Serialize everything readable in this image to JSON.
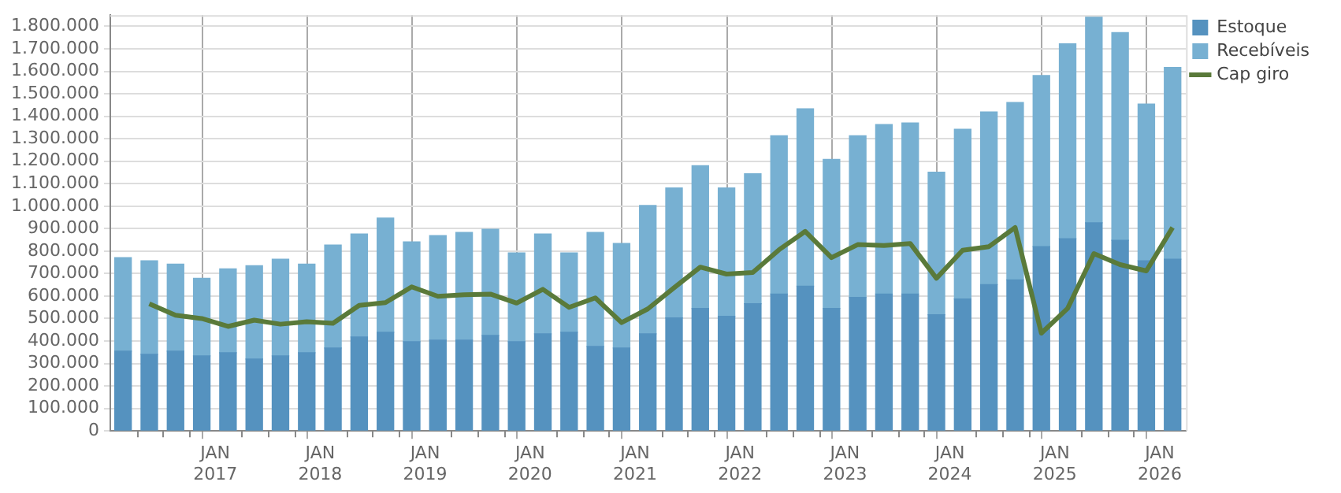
{
  "chart_data": {
    "type": "bar",
    "stacked": true,
    "legend": "top right",
    "grid": true,
    "marker": "none",
    "line_style": "solid",
    "x": [
      "2016-02-15",
      "2016-05-15",
      "2016-08-15",
      "2016-11-15",
      "2017-02-15",
      "2017-05-15",
      "2017-08-15",
      "2017-11-15",
      "2018-02-15",
      "2018-05-15",
      "2018-08-15",
      "2018-11-15",
      "2019-02-15",
      "2019-05-15",
      "2019-08-15",
      "2019-11-15",
      "2020-02-15",
      "2020-05-15",
      "2020-08-15",
      "2020-11-15",
      "2021-02-15",
      "2021-05-15",
      "2021-08-15",
      "2021-11-15",
      "2022-02-15",
      "2022-05-15",
      "2022-08-15",
      "2022-11-15",
      "2023-02-15",
      "2023-05-15",
      "2023-08-15",
      "2023-11-15",
      "2024-02-15",
      "2024-05-15",
      "2024-08-15",
      "2024-11-15",
      "2025-02-15",
      "2025-05-15",
      "2025-08-15",
      "2025-11-15",
      "2026-02-15"
    ],
    "xlim": [
      "2016-01-01",
      "2026-04-01"
    ],
    "xticks": [
      {
        "value": "2016-04-01",
        "label": null
      },
      {
        "value": "2016-07-01",
        "label": null
      },
      {
        "value": "2016-10-01",
        "label": null
      },
      {
        "value": "2017-01-01",
        "label": "JAN 2017"
      },
      {
        "value": "2017-04-01",
        "label": null
      },
      {
        "value": "2017-07-01",
        "label": null
      },
      {
        "value": "2017-10-01",
        "label": null
      },
      {
        "value": "2018-01-01",
        "label": "JAN 2018"
      },
      {
        "value": "2018-04-01",
        "label": null
      },
      {
        "value": "2018-07-01",
        "label": null
      },
      {
        "value": "2018-10-01",
        "label": null
      },
      {
        "value": "2019-01-01",
        "label": "JAN 2019"
      },
      {
        "value": "2019-04-01",
        "label": null
      },
      {
        "value": "2019-07-01",
        "label": null
      },
      {
        "value": "2019-10-01",
        "label": null
      },
      {
        "value": "2020-01-01",
        "label": "JAN 2020"
      },
      {
        "value": "2020-04-01",
        "label": null
      },
      {
        "value": "2020-07-01",
        "label": null
      },
      {
        "value": "2020-10-01",
        "label": null
      },
      {
        "value": "2021-01-01",
        "label": "JAN 2021"
      },
      {
        "value": "2021-04-01",
        "label": null
      },
      {
        "value": "2021-07-01",
        "label": null
      },
      {
        "value": "2021-10-01",
        "label": null
      },
      {
        "value": "2022-01-01",
        "label": "JAN 2022"
      },
      {
        "value": "2022-04-01",
        "label": null
      },
      {
        "value": "2022-07-01",
        "label": null
      },
      {
        "value": "2022-10-01",
        "label": null
      },
      {
        "value": "2023-01-01",
        "label": "JAN 2023"
      },
      {
        "value": "2023-04-01",
        "label": null
      },
      {
        "value": "2023-07-01",
        "label": null
      },
      {
        "value": "2023-10-01",
        "label": null
      },
      {
        "value": "2024-01-01",
        "label": "JAN 2024"
      },
      {
        "value": "2024-04-01",
        "label": null
      },
      {
        "value": "2024-07-01",
        "label": null
      },
      {
        "value": "2024-10-01",
        "label": null
      },
      {
        "value": "2025-01-01",
        "label": "JAN 2025"
      },
      {
        "value": "2025-04-01",
        "label": null
      },
      {
        "value": "2025-07-01",
        "label": null
      },
      {
        "value": "2025-10-01",
        "label": null
      },
      {
        "value": "2026-01-01",
        "label": "JAN 2026"
      }
    ],
    "ylim": [
      0,
      1850000
    ],
    "yticks": [
      0,
      {
        "value": 100000,
        "label": "100.000"
      },
      {
        "value": 200000,
        "label": "200.000"
      },
      {
        "value": 300000,
        "label": "300.000"
      },
      {
        "value": 400000,
        "label": "400.000"
      },
      {
        "value": 500000,
        "label": "500.000"
      },
      {
        "value": 600000,
        "label": "600.000"
      },
      {
        "value": 700000,
        "label": "700.000"
      },
      {
        "value": 800000,
        "label": "800.000"
      },
      {
        "value": 900000,
        "label": "900.000"
      },
      {
        "value": 1000000,
        "label": "1.000.000"
      },
      {
        "value": 1100000,
        "label": "1.100.000"
      },
      {
        "value": 1200000,
        "label": "1.200.000"
      },
      {
        "value": 1300000,
        "label": "1.300.000"
      },
      {
        "value": 1400000,
        "label": "1.400.000"
      },
      {
        "value": 1500000,
        "label": "1.500.000"
      },
      {
        "value": 1600000,
        "label": "1.600.000"
      },
      {
        "value": 1700000,
        "label": "1.700.000"
      },
      {
        "value": 1800000,
        "label": "1.800.000"
      }
    ],
    "series": [
      {
        "name": "Estoque",
        "color": "#5592bf",
        "values": [
          355000,
          341000,
          355000,
          334000,
          348000,
          320000,
          334000,
          348000,
          369000,
          418000,
          439000,
          397000,
          404000,
          404000,
          425000,
          397000,
          432000,
          439000,
          376000,
          369000,
          432000,
          503000,
          545000,
          510000,
          566000,
          609000,
          644000,
          545000,
          594000,
          609000,
          609000,
          517000,
          587000,
          651000,
          672000,
          820000,
          855000,
          926000,
          848000,
          757000,
          764000
        ]
      },
      {
        "name": "Recebíveis",
        "color": "#77b0d2",
        "values": [
          416000,
          416000,
          387000,
          345000,
          373000,
          415000,
          430000,
          394000,
          458000,
          458000,
          508000,
          444000,
          465000,
          479000,
          472000,
          395000,
          444000,
          353000,
          507000,
          465000,
          571000,
          578000,
          635000,
          571000,
          578000,
          704000,
          789000,
          663000,
          719000,
          754000,
          761000,
          634000,
          755000,
          768000,
          789000,
          761000,
          867000,
          916000,
          924000,
          697000,
          853000
        ]
      },
      {
        "name": "Cap giro",
        "type": "line",
        "color": "#5a7a3a",
        "values": [
          null,
          566000,
          515000,
          500000,
          465000,
          493000,
          475000,
          486000,
          479000,
          559000,
          571000,
          641000,
          599000,
          606000,
          609000,
          569000,
          630000,
          550000,
          592000,
          482000,
          543000,
          637000,
          729000,
          698000,
          705000,
          806000,
          888000,
          771000,
          829000,
          825000,
          834000,
          679000,
          804000,
          820000,
          905000,
          435000,
          545000,
          789000,
          740000,
          712000,
          905000
        ]
      }
    ]
  }
}
